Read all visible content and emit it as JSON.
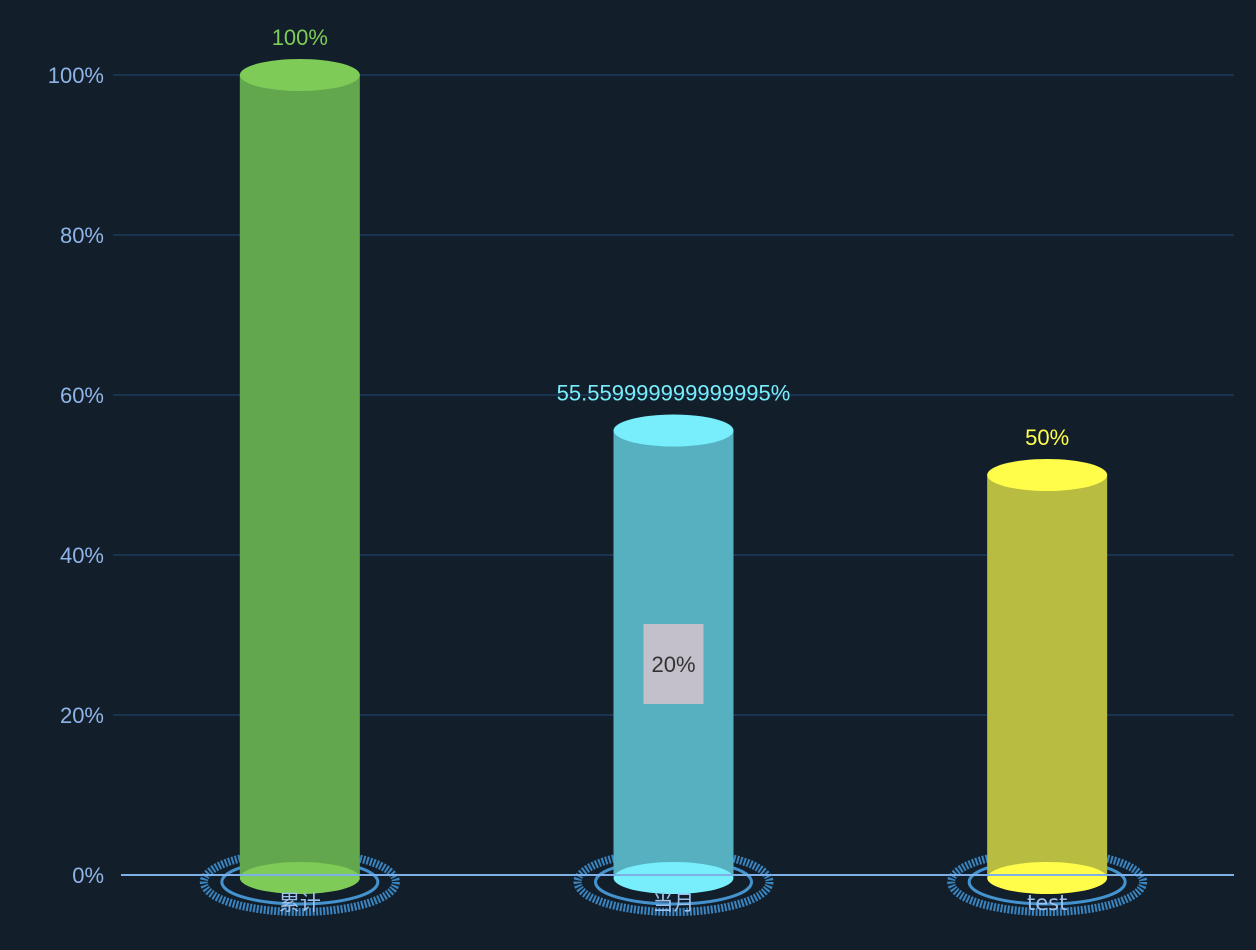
{
  "chart_data": {
    "type": "bar",
    "categories": [
      "累计",
      "当月",
      "test"
    ],
    "values": [
      100,
      55.559999999999995,
      50
    ],
    "value_labels": [
      "100%",
      "55.559999999999995%",
      "50%"
    ],
    "inner_label": {
      "category_index": 1,
      "text": "20%",
      "value": 20
    },
    "ylim": [
      0,
      100
    ],
    "yticks": [
      0,
      20,
      40,
      60,
      80,
      100
    ],
    "ytick_labels": [
      "0%",
      "20%",
      "40%",
      "60%",
      "80%",
      "100%"
    ],
    "xlabel": "",
    "ylabel": "",
    "title": "",
    "grid": true,
    "bar_colors": [
      "#62a74d",
      "#56b0c0",
      "#b8bc41"
    ],
    "top_colors": [
      "#7ecb57",
      "#78eefc",
      "#fffd4a"
    ],
    "label_colors": [
      "#7ecb57",
      "#78eefc",
      "#fffd4a"
    ]
  }
}
